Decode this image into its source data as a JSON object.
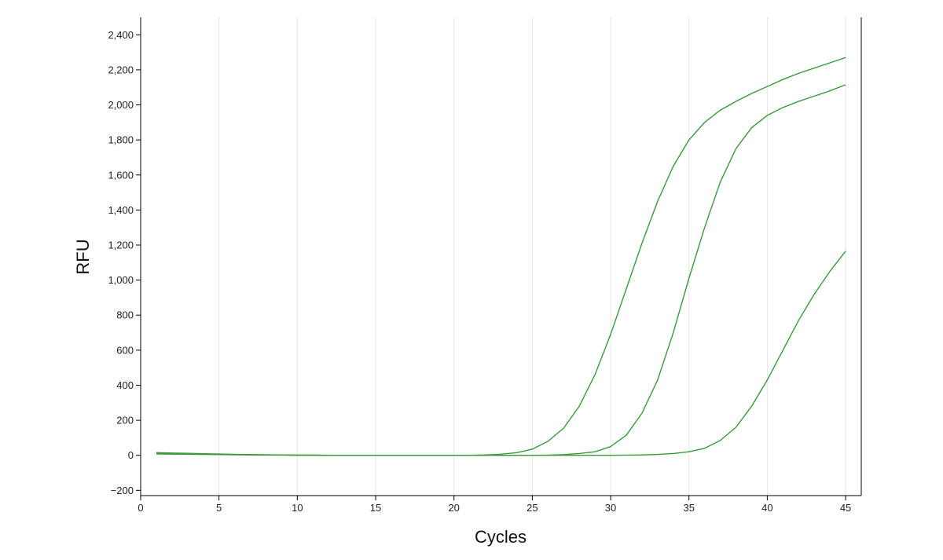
{
  "chart_data": {
    "type": "line",
    "title": "",
    "xlabel": "Cycles",
    "ylabel": "RFU",
    "xlim": [
      0,
      46
    ],
    "ylim": [
      -230,
      2500
    ],
    "xticks": [
      0,
      5,
      10,
      15,
      20,
      25,
      30,
      35,
      40,
      45
    ],
    "xtick_labels": [
      "0",
      "5",
      "10",
      "15",
      "20",
      "25",
      "30",
      "35",
      "40",
      "45"
    ],
    "yticks": [
      -200,
      0,
      200,
      400,
      600,
      800,
      1000,
      1200,
      1400,
      1600,
      1800,
      2000,
      2200,
      2400
    ],
    "ytick_labels": [
      "−200",
      "0",
      "200",
      "400",
      "600",
      "800",
      "1,000",
      "1,200",
      "1,400",
      "1,600",
      "1,800",
      "2,000",
      "2,200",
      "2,400"
    ],
    "grid": "vertical",
    "line_color": "#3a9a3a",
    "grid_color": "#e6e6e6",
    "axis_color": "#000000",
    "x": [
      1,
      2,
      3,
      4,
      5,
      6,
      7,
      8,
      9,
      10,
      11,
      12,
      13,
      14,
      15,
      16,
      17,
      18,
      19,
      20,
      21,
      22,
      23,
      24,
      25,
      26,
      27,
      28,
      29,
      30,
      31,
      32,
      33,
      34,
      35,
      36,
      37,
      38,
      39,
      40,
      41,
      42,
      43,
      44,
      45
    ],
    "series": [
      {
        "values": [
          15,
          13,
          11,
          9,
          7,
          5,
          4,
          3,
          2,
          1,
          1,
          0,
          0,
          0,
          0,
          0,
          0,
          0,
          0,
          0,
          0,
          2,
          6,
          15,
          35,
          80,
          155,
          280,
          460,
          690,
          950,
          1210,
          1450,
          1650,
          1800,
          1900,
          1970,
          2020,
          2065,
          2105,
          2145,
          2180,
          2210,
          2240,
          2270
        ]
      },
      {
        "values": [
          10,
          9,
          8,
          7,
          6,
          5,
          4,
          3,
          2,
          1,
          1,
          0,
          0,
          0,
          0,
          0,
          0,
          0,
          0,
          0,
          0,
          0,
          0,
          0,
          0,
          1,
          4,
          10,
          20,
          50,
          115,
          240,
          430,
          700,
          1010,
          1300,
          1560,
          1750,
          1870,
          1940,
          1985,
          2020,
          2050,
          2080,
          2115
        ]
      },
      {
        "values": [
          8,
          7,
          6,
          5,
          4,
          3,
          2,
          1,
          1,
          0,
          0,
          0,
          0,
          0,
          0,
          0,
          0,
          0,
          0,
          0,
          0,
          0,
          0,
          0,
          0,
          0,
          0,
          0,
          0,
          0,
          1,
          2,
          5,
          10,
          20,
          40,
          85,
          160,
          280,
          430,
          600,
          770,
          920,
          1050,
          1165
        ]
      }
    ]
  }
}
